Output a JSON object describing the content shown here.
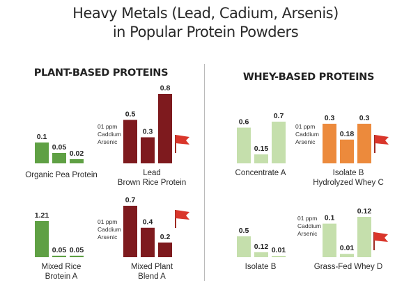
{
  "title_line1": "Heavy Metals (Lead, Cadium, Arsenis)",
  "title_line2": "in Popular Protein Powders",
  "sections": [
    {
      "title": "PLANT-BASED PROTEINS"
    },
    {
      "title": "WHEY-BASED PROTEINS"
    }
  ],
  "colors": {
    "green": "#5fa044",
    "light_green": "#c5dfac",
    "dark_red": "#7e1a1e",
    "orange": "#ec8a3c",
    "flag_red": "#d9362b"
  },
  "chart_data": [
    {
      "type": "bar",
      "section": "PLANT-BASED PROTEINS",
      "caption": [
        "Organic Pea Protein"
      ],
      "values": [
        0.1,
        0.05,
        0.02
      ],
      "value_labels": [
        "0.1",
        "0.05",
        "0.02"
      ],
      "color": "green",
      "legend": [],
      "flag": false
    },
    {
      "type": "bar",
      "section": "PLANT-BASED PROTEINS",
      "caption": [
        "Lead",
        "Brown Rice Protein"
      ],
      "values": [
        0.5,
        0.3,
        0.8
      ],
      "value_labels": [
        "0.5",
        "0.3",
        "0.8"
      ],
      "color": "dark_red",
      "legend": [
        "01 ppm",
        "Caddium",
        "Arsenic"
      ],
      "flag": true
    },
    {
      "type": "bar",
      "section": "PLANT-BASED PROTEINS",
      "caption": [
        "Mixed Rice",
        "Brotein A"
      ],
      "values": [
        1.21,
        0.05,
        0.05
      ],
      "value_labels": [
        "1.21",
        "0.05",
        "0.05"
      ],
      "color": "green",
      "legend": [],
      "flag": false
    },
    {
      "type": "bar",
      "section": "PLANT-BASED PROTEINS",
      "caption": [
        "Mixed Plant",
        "Blend A"
      ],
      "values": [
        0.7,
        0.4,
        0.2
      ],
      "value_labels": [
        "0.7",
        "0.4",
        "0.2"
      ],
      "color": "dark_red",
      "legend": [
        "01 ppm",
        "Caddium",
        "Arsenic"
      ],
      "flag": true
    },
    {
      "type": "bar",
      "section": "WHEY-BASED PROTEINS",
      "caption": [
        "Concentrate A"
      ],
      "values": [
        0.6,
        0.15,
        0.7
      ],
      "value_labels": [
        "0.6",
        "0.15",
        "0.7"
      ],
      "color": "light_green",
      "legend": [],
      "flag": false
    },
    {
      "type": "bar",
      "section": "WHEY-BASED PROTEINS",
      "caption": [
        "Isolate B",
        "Hydrolyzed Whey C"
      ],
      "values": [
        0.3,
        0.18,
        0.3
      ],
      "value_labels": [
        "0.3",
        "0.18",
        "0.3"
      ],
      "color": "orange",
      "legend": [
        "01 ppm",
        "Caddium",
        "Arsenic"
      ],
      "flag": true
    },
    {
      "type": "bar",
      "section": "WHEY-BASED PROTEINS",
      "caption": [
        "Isolate B"
      ],
      "values": [
        0.5,
        0.12,
        0.01
      ],
      "value_labels": [
        "0.5",
        "0.12",
        "0.01"
      ],
      "color": "light_green",
      "legend": [
        "01 ppm",
        "Caddium",
        "Arsenic"
      ],
      "flag": false
    },
    {
      "type": "bar",
      "section": "WHEY-BASED PROTEINS",
      "caption": [
        "Grass-Fed Whey D"
      ],
      "values": [
        0.1,
        0.01,
        0.12
      ],
      "value_labels": [
        "0.1",
        "0.01",
        "0.12"
      ],
      "color": "light_green",
      "legend": [],
      "flag": true
    }
  ]
}
